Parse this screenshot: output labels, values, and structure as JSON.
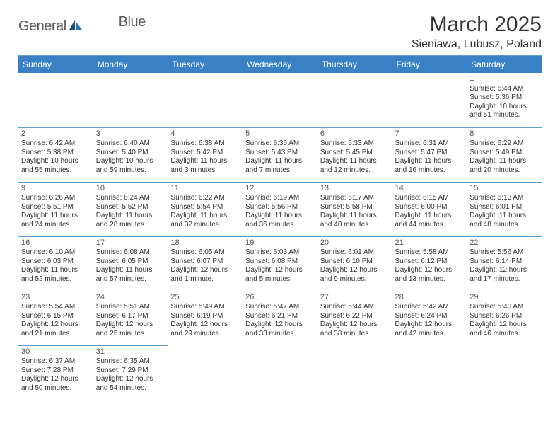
{
  "logo": {
    "text1": "General",
    "text2": "Blue"
  },
  "title": "March 2025",
  "location": "Sieniawa, Lubusz, Poland",
  "colors": {
    "header_bg": "#3a80c4",
    "border": "#5b9bd5",
    "text": "#333333",
    "logo_gray": "#5a5a5a",
    "logo_blue": "#2e75b6",
    "page_bg": "#ffffff"
  },
  "fonts": {
    "title_size": 30,
    "location_size": 16,
    "dayhead_size": 12,
    "cell_size": 10
  },
  "day_headers": [
    "Sunday",
    "Monday",
    "Tuesday",
    "Wednesday",
    "Thursday",
    "Friday",
    "Saturday"
  ],
  "weeks": [
    [
      null,
      null,
      null,
      null,
      null,
      null,
      {
        "n": "1",
        "sunrise": "Sunrise: 6:44 AM",
        "sunset": "Sunset: 5:36 PM",
        "day1": "Daylight: 10 hours",
        "day2": "and 51 minutes."
      }
    ],
    [
      {
        "n": "2",
        "sunrise": "Sunrise: 6:42 AM",
        "sunset": "Sunset: 5:38 PM",
        "day1": "Daylight: 10 hours",
        "day2": "and 55 minutes."
      },
      {
        "n": "3",
        "sunrise": "Sunrise: 6:40 AM",
        "sunset": "Sunset: 5:40 PM",
        "day1": "Daylight: 10 hours",
        "day2": "and 59 minutes."
      },
      {
        "n": "4",
        "sunrise": "Sunrise: 6:38 AM",
        "sunset": "Sunset: 5:42 PM",
        "day1": "Daylight: 11 hours",
        "day2": "and 3 minutes."
      },
      {
        "n": "5",
        "sunrise": "Sunrise: 6:36 AM",
        "sunset": "Sunset: 5:43 PM",
        "day1": "Daylight: 11 hours",
        "day2": "and 7 minutes."
      },
      {
        "n": "6",
        "sunrise": "Sunrise: 6:33 AM",
        "sunset": "Sunset: 5:45 PM",
        "day1": "Daylight: 11 hours",
        "day2": "and 12 minutes."
      },
      {
        "n": "7",
        "sunrise": "Sunrise: 6:31 AM",
        "sunset": "Sunset: 5:47 PM",
        "day1": "Daylight: 11 hours",
        "day2": "and 16 minutes."
      },
      {
        "n": "8",
        "sunrise": "Sunrise: 6:29 AM",
        "sunset": "Sunset: 5:49 PM",
        "day1": "Daylight: 11 hours",
        "day2": "and 20 minutes."
      }
    ],
    [
      {
        "n": "9",
        "sunrise": "Sunrise: 6:26 AM",
        "sunset": "Sunset: 5:51 PM",
        "day1": "Daylight: 11 hours",
        "day2": "and 24 minutes."
      },
      {
        "n": "10",
        "sunrise": "Sunrise: 6:24 AM",
        "sunset": "Sunset: 5:52 PM",
        "day1": "Daylight: 11 hours",
        "day2": "and 28 minutes."
      },
      {
        "n": "11",
        "sunrise": "Sunrise: 6:22 AM",
        "sunset": "Sunset: 5:54 PM",
        "day1": "Daylight: 11 hours",
        "day2": "and 32 minutes."
      },
      {
        "n": "12",
        "sunrise": "Sunrise: 6:19 AM",
        "sunset": "Sunset: 5:56 PM",
        "day1": "Daylight: 11 hours",
        "day2": "and 36 minutes."
      },
      {
        "n": "13",
        "sunrise": "Sunrise: 6:17 AM",
        "sunset": "Sunset: 5:58 PM",
        "day1": "Daylight: 11 hours",
        "day2": "and 40 minutes."
      },
      {
        "n": "14",
        "sunrise": "Sunrise: 6:15 AM",
        "sunset": "Sunset: 6:00 PM",
        "day1": "Daylight: 11 hours",
        "day2": "and 44 minutes."
      },
      {
        "n": "15",
        "sunrise": "Sunrise: 6:13 AM",
        "sunset": "Sunset: 6:01 PM",
        "day1": "Daylight: 11 hours",
        "day2": "and 48 minutes."
      }
    ],
    [
      {
        "n": "16",
        "sunrise": "Sunrise: 6:10 AM",
        "sunset": "Sunset: 6:03 PM",
        "day1": "Daylight: 11 hours",
        "day2": "and 52 minutes."
      },
      {
        "n": "17",
        "sunrise": "Sunrise: 6:08 AM",
        "sunset": "Sunset: 6:05 PM",
        "day1": "Daylight: 11 hours",
        "day2": "and 57 minutes."
      },
      {
        "n": "18",
        "sunrise": "Sunrise: 6:05 AM",
        "sunset": "Sunset: 6:07 PM",
        "day1": "Daylight: 12 hours",
        "day2": "and 1 minute."
      },
      {
        "n": "19",
        "sunrise": "Sunrise: 6:03 AM",
        "sunset": "Sunset: 6:08 PM",
        "day1": "Daylight: 12 hours",
        "day2": "and 5 minutes."
      },
      {
        "n": "20",
        "sunrise": "Sunrise: 6:01 AM",
        "sunset": "Sunset: 6:10 PM",
        "day1": "Daylight: 12 hours",
        "day2": "and 9 minutes."
      },
      {
        "n": "21",
        "sunrise": "Sunrise: 5:58 AM",
        "sunset": "Sunset: 6:12 PM",
        "day1": "Daylight: 12 hours",
        "day2": "and 13 minutes."
      },
      {
        "n": "22",
        "sunrise": "Sunrise: 5:56 AM",
        "sunset": "Sunset: 6:14 PM",
        "day1": "Daylight: 12 hours",
        "day2": "and 17 minutes."
      }
    ],
    [
      {
        "n": "23",
        "sunrise": "Sunrise: 5:54 AM",
        "sunset": "Sunset: 6:15 PM",
        "day1": "Daylight: 12 hours",
        "day2": "and 21 minutes."
      },
      {
        "n": "24",
        "sunrise": "Sunrise: 5:51 AM",
        "sunset": "Sunset: 6:17 PM",
        "day1": "Daylight: 12 hours",
        "day2": "and 25 minutes."
      },
      {
        "n": "25",
        "sunrise": "Sunrise: 5:49 AM",
        "sunset": "Sunset: 6:19 PM",
        "day1": "Daylight: 12 hours",
        "day2": "and 29 minutes."
      },
      {
        "n": "26",
        "sunrise": "Sunrise: 5:47 AM",
        "sunset": "Sunset: 6:21 PM",
        "day1": "Daylight: 12 hours",
        "day2": "and 33 minutes."
      },
      {
        "n": "27",
        "sunrise": "Sunrise: 5:44 AM",
        "sunset": "Sunset: 6:22 PM",
        "day1": "Daylight: 12 hours",
        "day2": "and 38 minutes."
      },
      {
        "n": "28",
        "sunrise": "Sunrise: 5:42 AM",
        "sunset": "Sunset: 6:24 PM",
        "day1": "Daylight: 12 hours",
        "day2": "and 42 minutes."
      },
      {
        "n": "29",
        "sunrise": "Sunrise: 5:40 AM",
        "sunset": "Sunset: 6:26 PM",
        "day1": "Daylight: 12 hours",
        "day2": "and 46 minutes."
      }
    ],
    [
      {
        "n": "30",
        "sunrise": "Sunrise: 6:37 AM",
        "sunset": "Sunset: 7:28 PM",
        "day1": "Daylight: 12 hours",
        "day2": "and 50 minutes."
      },
      {
        "n": "31",
        "sunrise": "Sunrise: 6:35 AM",
        "sunset": "Sunset: 7:29 PM",
        "day1": "Daylight: 12 hours",
        "day2": "and 54 minutes."
      },
      null,
      null,
      null,
      null,
      null
    ]
  ]
}
